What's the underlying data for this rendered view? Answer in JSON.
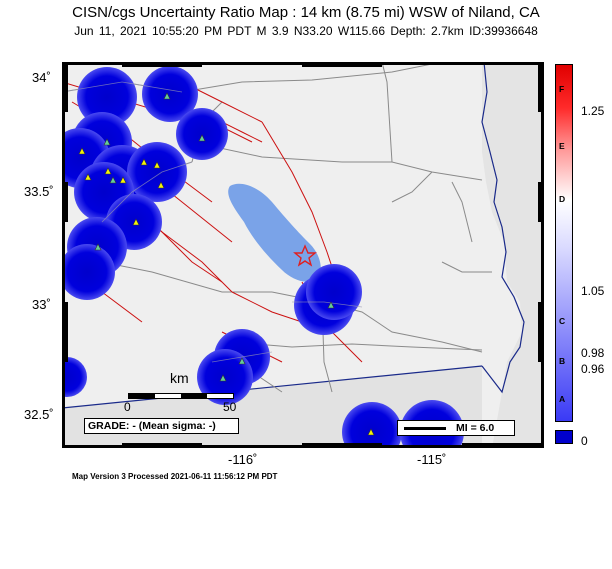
{
  "header": {
    "title": "CISN/cgs Uncertainty Ratio Map : 14 km (8.75 mi) WSW of Niland, CA",
    "subtitle": "Jun 11, 2021 10:55:20 PM PDT   M 3.9   N33.20 W115.66   Depth: 2.7km   ID:39936648"
  },
  "axes": {
    "lat_labels": [
      "34˚",
      "33.5˚",
      "33˚",
      "32.5˚"
    ],
    "lon_labels": [
      "-116˚",
      "-115˚"
    ]
  },
  "scale": {
    "title": "km",
    "start": "0",
    "end": "50"
  },
  "grade": "GRADE: - (Mean sigma: -)",
  "mi_legend": "MI = 6.0",
  "colorbar": {
    "letters": [
      "F",
      "E",
      "D",
      "C",
      "B",
      "A"
    ],
    "values": [
      "1.25",
      "1.05",
      "0.98",
      "0.96",
      "0"
    ]
  },
  "footer": "Map Version 3 Processed 2021-06-11 11:56:12 PM PDT",
  "colors": {
    "uncertainty_blob": "#0000dd",
    "land": "#efefef",
    "fault": "#cc1111",
    "water": "#7aa3e8"
  }
}
